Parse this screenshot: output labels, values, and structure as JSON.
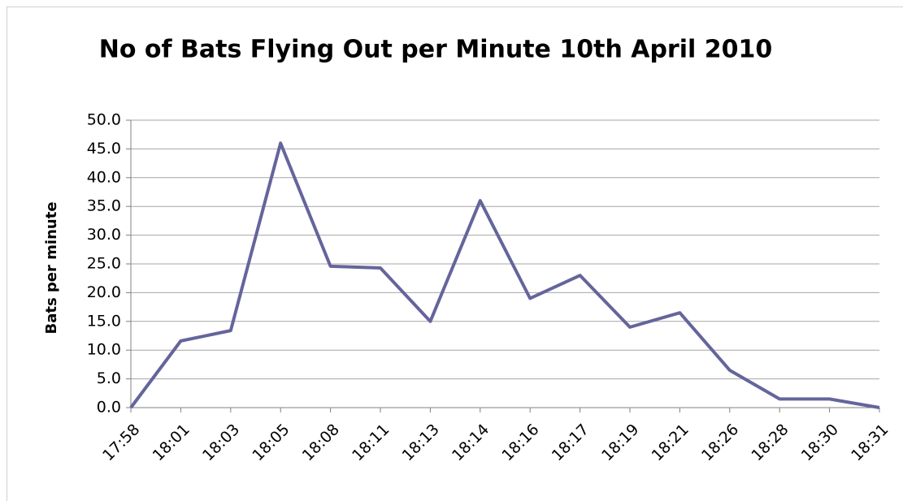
{
  "chart_data": {
    "type": "line",
    "title": "No of Bats Flying Out per Minute 10th April 2010",
    "y_label": "Bats per minute",
    "categories": [
      "17:58",
      "18:01",
      "18:03",
      "18:05",
      "18:08",
      "18:11",
      "18:13",
      "18:14",
      "18:16",
      "18:17",
      "18:19",
      "18:21",
      "18:26",
      "18:28",
      "18:30",
      "18:31"
    ],
    "series": [
      {
        "name": "Bats per minute",
        "color": "#65659c",
        "values": [
          0,
          11.6,
          13.4,
          46,
          24.6,
          24.3,
          15,
          36,
          19,
          23,
          14,
          16.5,
          6.5,
          1.5,
          1.5,
          0
        ]
      }
    ],
    "ylim": [
      0,
      50
    ],
    "yticks": [
      {
        "value": 0,
        "label": "0.0"
      },
      {
        "value": 5,
        "label": "5.0"
      },
      {
        "value": 10,
        "label": "10.0"
      },
      {
        "value": 15,
        "label": "15.0"
      },
      {
        "value": 20,
        "label": "20.0"
      },
      {
        "value": 25,
        "label": "25.0"
      },
      {
        "value": 30,
        "label": "30.0"
      },
      {
        "value": 35,
        "label": "35.0"
      },
      {
        "value": 40,
        "label": "40.0"
      },
      {
        "value": 45,
        "label": "45.0"
      },
      {
        "value": 50,
        "label": "50.0"
      }
    ],
    "grid": true
  }
}
